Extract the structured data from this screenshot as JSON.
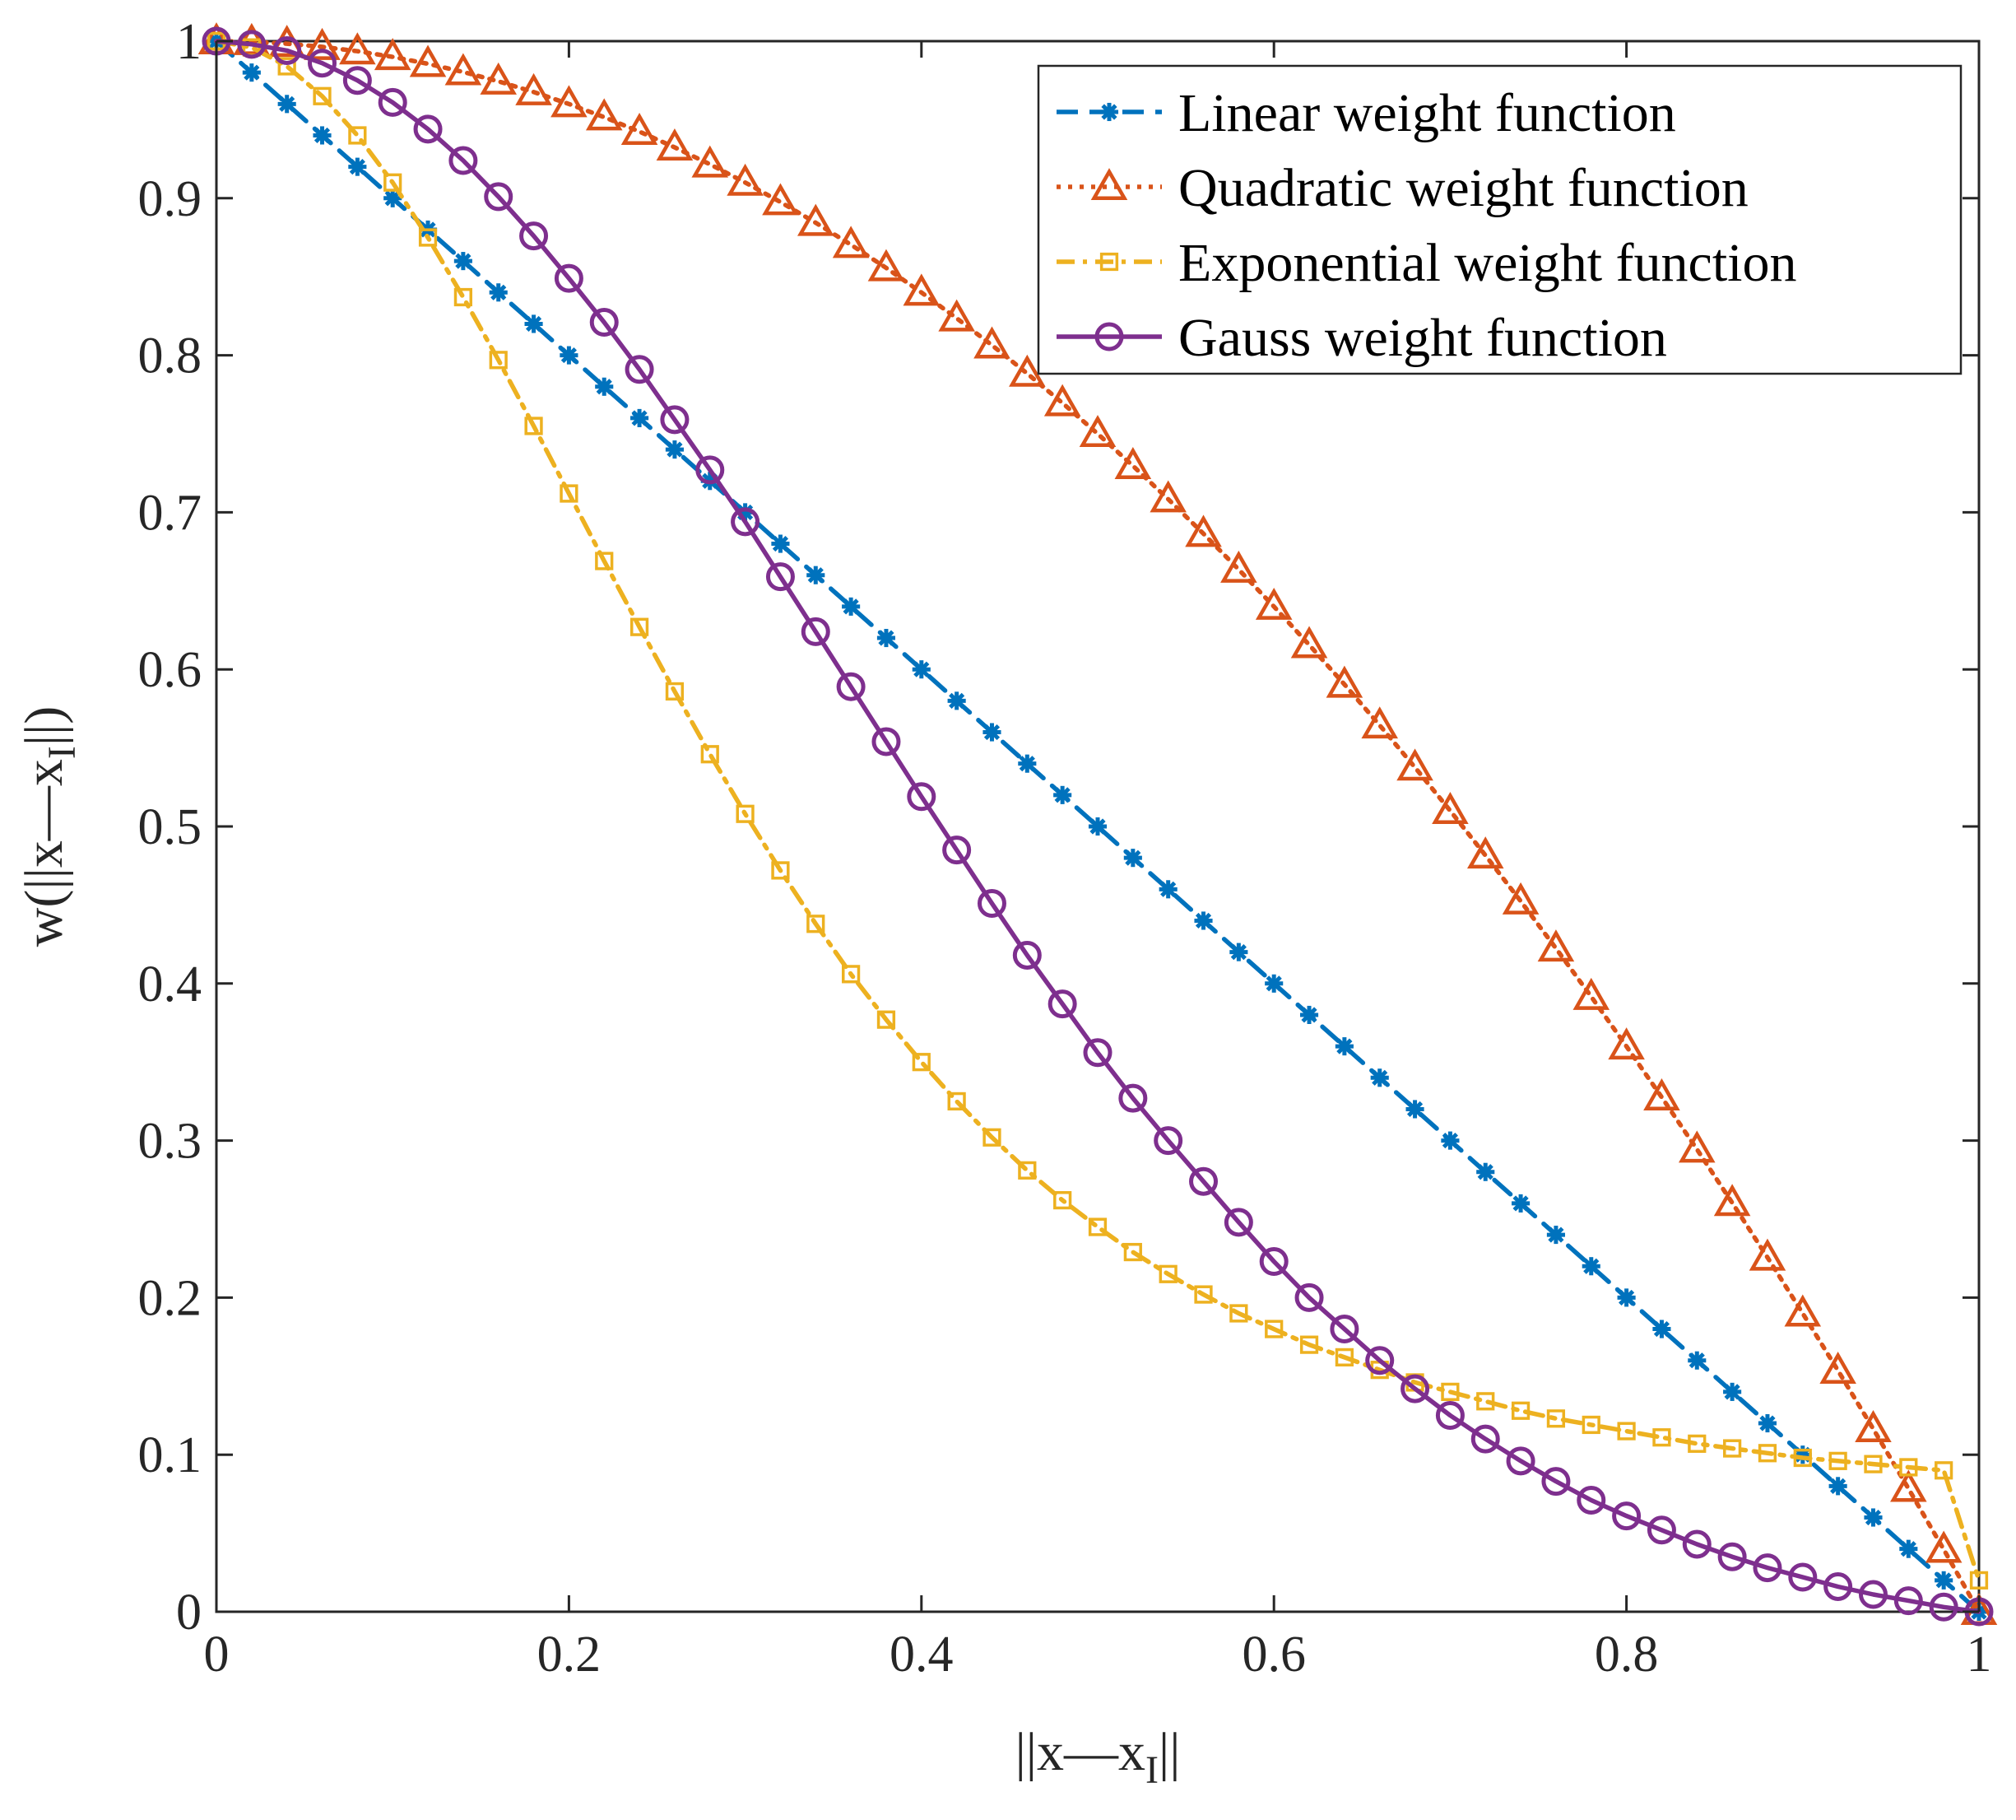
{
  "chart_data": {
    "type": "line",
    "xlabel_parts": [
      "||x—x",
      "I",
      "||"
    ],
    "ylabel_parts": [
      "w(||x—x",
      "I",
      "||)"
    ],
    "xlim": [
      0,
      1
    ],
    "ylim": [
      0,
      1
    ],
    "x_ticks": [
      "0",
      "0.2",
      "0.4",
      "0.6",
      "0.8",
      "1"
    ],
    "y_ticks": [
      "0",
      "0.1",
      "0.2",
      "0.3",
      "0.4",
      "0.5",
      "0.6",
      "0.7",
      "0.8",
      "0.9",
      "1"
    ],
    "x_tick_values": [
      0,
      0.2,
      0.4,
      0.6,
      0.8,
      1
    ],
    "y_tick_values": [
      0,
      0.1,
      0.2,
      0.3,
      0.4,
      0.5,
      0.6,
      0.7,
      0.8,
      0.9,
      1
    ],
    "grid": false,
    "legend_position": "top-right",
    "x": [
      0,
      0.02,
      0.04,
      0.06,
      0.08,
      0.1,
      0.12,
      0.14,
      0.16,
      0.18,
      0.2,
      0.22,
      0.24,
      0.26,
      0.28,
      0.3,
      0.32,
      0.34,
      0.36,
      0.38,
      0.4,
      0.42,
      0.44,
      0.46,
      0.48,
      0.5,
      0.52,
      0.54,
      0.56,
      0.58,
      0.6,
      0.62,
      0.64,
      0.66,
      0.68,
      0.7,
      0.72,
      0.74,
      0.76,
      0.78,
      0.8,
      0.82,
      0.84,
      0.86,
      0.88,
      0.9,
      0.92,
      0.94,
      0.96,
      0.98,
      1
    ],
    "series": [
      {
        "name": "Linear weight function",
        "color": "#0072BD",
        "line_style": "dashed",
        "marker": "asterisk",
        "values": [
          1,
          0.98,
          0.96,
          0.94,
          0.92,
          0.9,
          0.88,
          0.86,
          0.84,
          0.82,
          0.8,
          0.78,
          0.76,
          0.74,
          0.72,
          0.7,
          0.68,
          0.66,
          0.64,
          0.62,
          0.6,
          0.58,
          0.56,
          0.54,
          0.52,
          0.5,
          0.48,
          0.46,
          0.44,
          0.42,
          0.4,
          0.38,
          0.36,
          0.34,
          0.32,
          0.3,
          0.28,
          0.26,
          0.24,
          0.22,
          0.2,
          0.18,
          0.16,
          0.14,
          0.12,
          0.1,
          0.08,
          0.06,
          0.04,
          0.02,
          0
        ]
      },
      {
        "name": "Quadratic weight function",
        "color": "#D95319",
        "line_style": "dotted",
        "marker": "triangle",
        "values": [
          1,
          0.9996,
          0.9984,
          0.9964,
          0.9936,
          0.99,
          0.9856,
          0.9804,
          0.9744,
          0.9676,
          0.96,
          0.9516,
          0.9424,
          0.9324,
          0.9216,
          0.91,
          0.8976,
          0.8844,
          0.8704,
          0.8556,
          0.84,
          0.8236,
          0.8064,
          0.7884,
          0.7696,
          0.75,
          0.7296,
          0.7084,
          0.6864,
          0.6636,
          0.64,
          0.6156,
          0.5904,
          0.5644,
          0.5376,
          0.51,
          0.4816,
          0.4524,
          0.4224,
          0.3916,
          0.36,
          0.3276,
          0.2944,
          0.2604,
          0.2256,
          0.19,
          0.1536,
          0.1164,
          0.0784,
          0.0396,
          0
        ]
      },
      {
        "name": "Exponential weight function",
        "color": "#EDB120",
        "line_style": "dashdot",
        "marker": "square",
        "values": [
          1,
          0.996,
          0.984,
          0.965,
          0.94,
          0.91,
          0.875,
          0.837,
          0.797,
          0.755,
          0.712,
          0.669,
          0.627,
          0.586,
          0.546,
          0.508,
          0.472,
          0.438,
          0.406,
          0.377,
          0.35,
          0.325,
          0.302,
          0.281,
          0.262,
          0.245,
          0.229,
          0.215,
          0.202,
          0.19,
          0.18,
          0.17,
          0.162,
          0.154,
          0.146,
          0.14,
          0.134,
          0.128,
          0.123,
          0.119,
          0.115,
          0.111,
          0.107,
          0.104,
          0.101,
          0.098,
          0.096,
          0.094,
          0.092,
          0.09,
          0.02
        ]
      },
      {
        "name": "Gauss weight function",
        "color": "#7E2F8E",
        "line_style": "solid",
        "marker": "circle",
        "values": [
          1,
          0.998,
          0.994,
          0.986,
          0.975,
          0.961,
          0.944,
          0.924,
          0.901,
          0.876,
          0.849,
          0.821,
          0.791,
          0.759,
          0.727,
          0.694,
          0.659,
          0.624,
          0.589,
          0.554,
          0.519,
          0.485,
          0.451,
          0.418,
          0.387,
          0.356,
          0.327,
          0.3,
          0.274,
          0.248,
          0.223,
          0.2,
          0.18,
          0.16,
          0.142,
          0.125,
          0.11,
          0.096,
          0.083,
          0.071,
          0.061,
          0.052,
          0.043,
          0.035,
          0.028,
          0.022,
          0.016,
          0.011,
          0.007,
          0.003,
          0
        ]
      }
    ]
  }
}
